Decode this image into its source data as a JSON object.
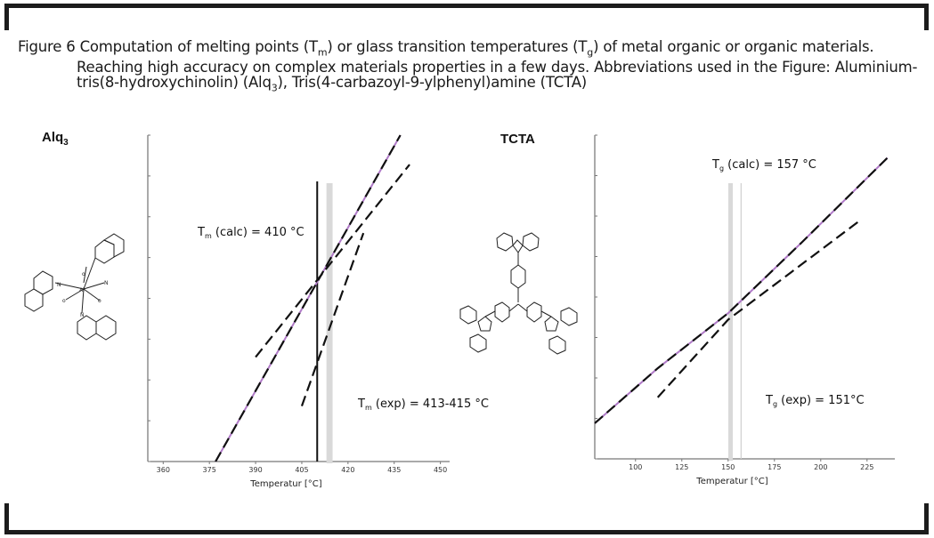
{
  "caption": {
    "line1_a": "Figure 6 Computation of melting points (T",
    "line1_sub1": "m",
    "line1_b": ") or glass transition temperatures (T",
    "line1_sub2": "g",
    "line1_c": ") of metal organic or organic materials.",
    "line2": "Reaching high accuracy on complex materials properties in a few days. Abbreviations used in the Figure: Aluminium-",
    "line3_a": "tris(8-hydroxychinolin) (Alq",
    "line3_sub": "3",
    "line3_b": "), Tris(4-carbazoyl-9-ylphenyl)amine (TCTA)"
  },
  "panels": {
    "left": {
      "label": "Alq",
      "label_sub": "3"
    },
    "right": {
      "label": "TCTA"
    }
  },
  "chart_data": [
    {
      "type": "line",
      "xlabel": "Temperatur [°C]",
      "ylabel": "",
      "xlim": [
        355,
        453
      ],
      "ylim": [
        0,
        100
      ],
      "x_ticks": [
        360,
        375,
        390,
        405,
        420,
        435,
        450
      ],
      "series": [
        {
          "style": "solid-violet",
          "x": [
            377,
            437
          ],
          "y": [
            0,
            100
          ]
        },
        {
          "style": "dashed",
          "x": [
            377,
            437
          ],
          "y": [
            0,
            100
          ]
        },
        {
          "style": "dashed",
          "x": [
            390,
            440
          ],
          "y": [
            32,
            91
          ]
        },
        {
          "style": "dashed",
          "x": [
            405,
            425
          ],
          "y": [
            17,
            70
          ]
        }
      ],
      "vlines": [
        {
          "style": "solid-black",
          "x": 410
        },
        {
          "style": "band-gray",
          "x": [
            413,
            415
          ]
        }
      ],
      "annotations": [
        {
          "T": "T",
          "sub": "m",
          "text": " (calc) = 410 °C"
        },
        {
          "T": "T",
          "sub": "m",
          "text": " (exp) = 413-415 °C"
        }
      ],
      "colors": {
        "calc_line": "#b07ac8",
        "band": "#d9d9d9"
      }
    },
    {
      "type": "line",
      "xlabel": "Temperatur [°C]",
      "ylabel": "",
      "xlim": [
        78,
        240
      ],
      "ylim": [
        0,
        100
      ],
      "x_ticks": [
        100,
        125,
        150,
        175,
        200,
        225
      ],
      "series": [
        {
          "style": "solid-violet",
          "x": [
            78,
            112,
            150,
            190,
            236
          ],
          "y": [
            11,
            28,
            45,
            67,
            93
          ]
        },
        {
          "style": "dashed",
          "x": [
            78,
            112,
            150,
            190,
            236
          ],
          "y": [
            11,
            28,
            45,
            67,
            93
          ]
        },
        {
          "style": "dashed",
          "x": [
            112,
            150,
            222
          ],
          "y": [
            19,
            43,
            74
          ]
        }
      ],
      "vlines": [
        {
          "style": "band-gray",
          "x": 151
        },
        {
          "style": "thin-gray",
          "x": 157
        }
      ],
      "annotations": [
        {
          "T": "T",
          "sub": "g",
          "text": " (calc) = 157 °C"
        },
        {
          "T": "T",
          "sub": "g",
          "text": " (exp) = 151°C"
        }
      ],
      "colors": {
        "calc_line": "#b07ac8",
        "band": "#d9d9d9"
      }
    }
  ]
}
